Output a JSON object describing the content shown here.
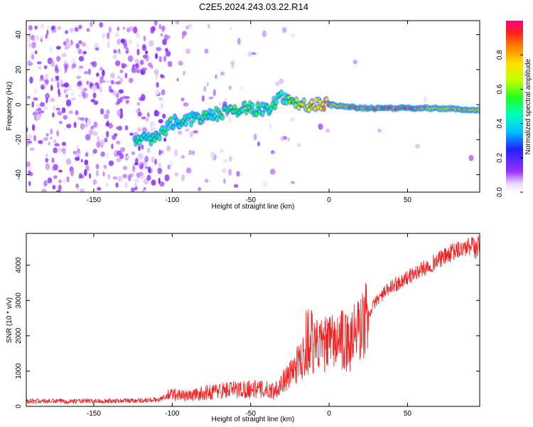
{
  "title": "C2E5.2024.243.03.22.R14",
  "chart_data": [
    {
      "type": "heatmap",
      "name": "spectrogram",
      "xlabel": "Height of straight line (km)",
      "ylabel": "Frequency (Hz)",
      "xlim": [
        -193,
        96
      ],
      "ylim": [
        -50,
        48
      ],
      "xticks": [
        -150,
        -100,
        -50,
        0,
        50
      ],
      "yticks": [
        -40,
        -20,
        0,
        20,
        40
      ],
      "colorbar": {
        "label": "Normalized spectral amplitude",
        "range": [
          0,
          1
        ],
        "ticks": [
          "0.0",
          "0.2",
          "0.4",
          "0.6",
          "0.8"
        ],
        "tick_values": [
          0.0,
          0.2,
          0.4,
          0.6,
          0.8
        ]
      },
      "ridge": [
        {
          "x": -122,
          "y": -20,
          "a": 0.45
        },
        {
          "x": -110,
          "y": -19,
          "a": 0.5
        },
        {
          "x": -100,
          "y": -10,
          "a": 0.45
        },
        {
          "x": -85,
          "y": -8,
          "a": 0.45
        },
        {
          "x": -70,
          "y": -5,
          "a": 0.5
        },
        {
          "x": -55,
          "y": -2,
          "a": 0.5
        },
        {
          "x": -40,
          "y": -3,
          "a": 0.45
        },
        {
          "x": -30,
          "y": 5,
          "a": 0.5
        },
        {
          "x": -20,
          "y": 0,
          "a": 0.65
        },
        {
          "x": 0,
          "y": 0,
          "a": 0.8
        },
        {
          "x": 20,
          "y": -2,
          "a": 0.85
        },
        {
          "x": 50,
          "y": -2,
          "a": 0.88
        },
        {
          "x": 70,
          "y": -2,
          "a": 0.75
        },
        {
          "x": 90,
          "y": -3,
          "a": 0.8
        }
      ]
    },
    {
      "type": "line",
      "name": "snr",
      "xlabel": "Height of straight line (km)",
      "ylabel": "SNR (10 * v/v)",
      "xlim": [
        -193,
        96
      ],
      "ylim": [
        0,
        4900
      ],
      "xticks": [
        -150,
        -100,
        -50,
        0,
        50
      ],
      "yticks": [
        0,
        1000,
        2000,
        3000,
        4000
      ],
      "color": "#ee2222",
      "series_trend": {
        "x": [
          -193,
          -150,
          -110,
          -100,
          -90,
          -70,
          -50,
          -35,
          -25,
          -15,
          -10,
          -5,
          0,
          10,
          20,
          30,
          40,
          60,
          80,
          96
        ],
        "y": [
          150,
          150,
          180,
          350,
          300,
          450,
          500,
          450,
          900,
          1500,
          1700,
          1700,
          1800,
          1900,
          2200,
          3000,
          3400,
          3900,
          4400,
          4600
        ]
      }
    }
  ]
}
